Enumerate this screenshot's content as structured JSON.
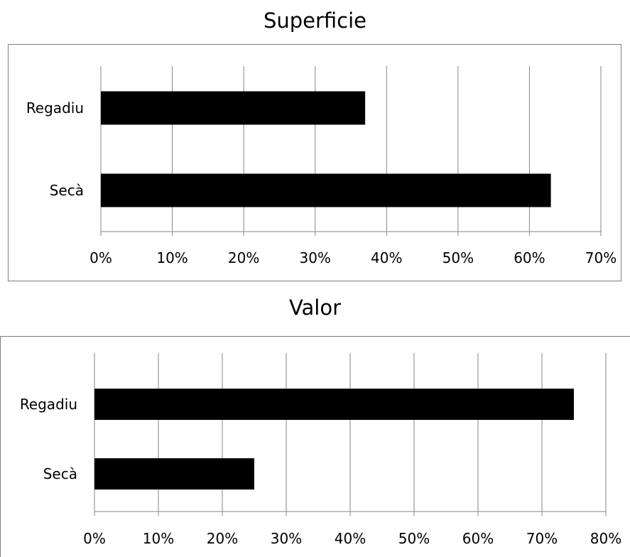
{
  "chart_data": [
    {
      "type": "bar",
      "orientation": "horizontal",
      "title": "Superficie",
      "categories": [
        "Regadiu",
        "Secà"
      ],
      "values": [
        37,
        63
      ],
      "value_unit": "%",
      "xlim": [
        0,
        70
      ],
      "xticks": [
        "0%",
        "10%",
        "20%",
        "30%",
        "40%",
        "50%",
        "60%",
        "70%"
      ],
      "grid": true,
      "bar_color": "#000000",
      "legend": "none"
    },
    {
      "type": "bar",
      "orientation": "horizontal",
      "title": "Valor",
      "categories": [
        "Regadiu",
        "Secà"
      ],
      "values": [
        75,
        25
      ],
      "value_unit": "%",
      "xlim": [
        0,
        80
      ],
      "xticks": [
        "0%",
        "10%",
        "20%",
        "30%",
        "40%",
        "50%",
        "60%",
        "70%",
        "80%"
      ],
      "grid": true,
      "bar_color": "#000000",
      "legend": "none"
    }
  ]
}
